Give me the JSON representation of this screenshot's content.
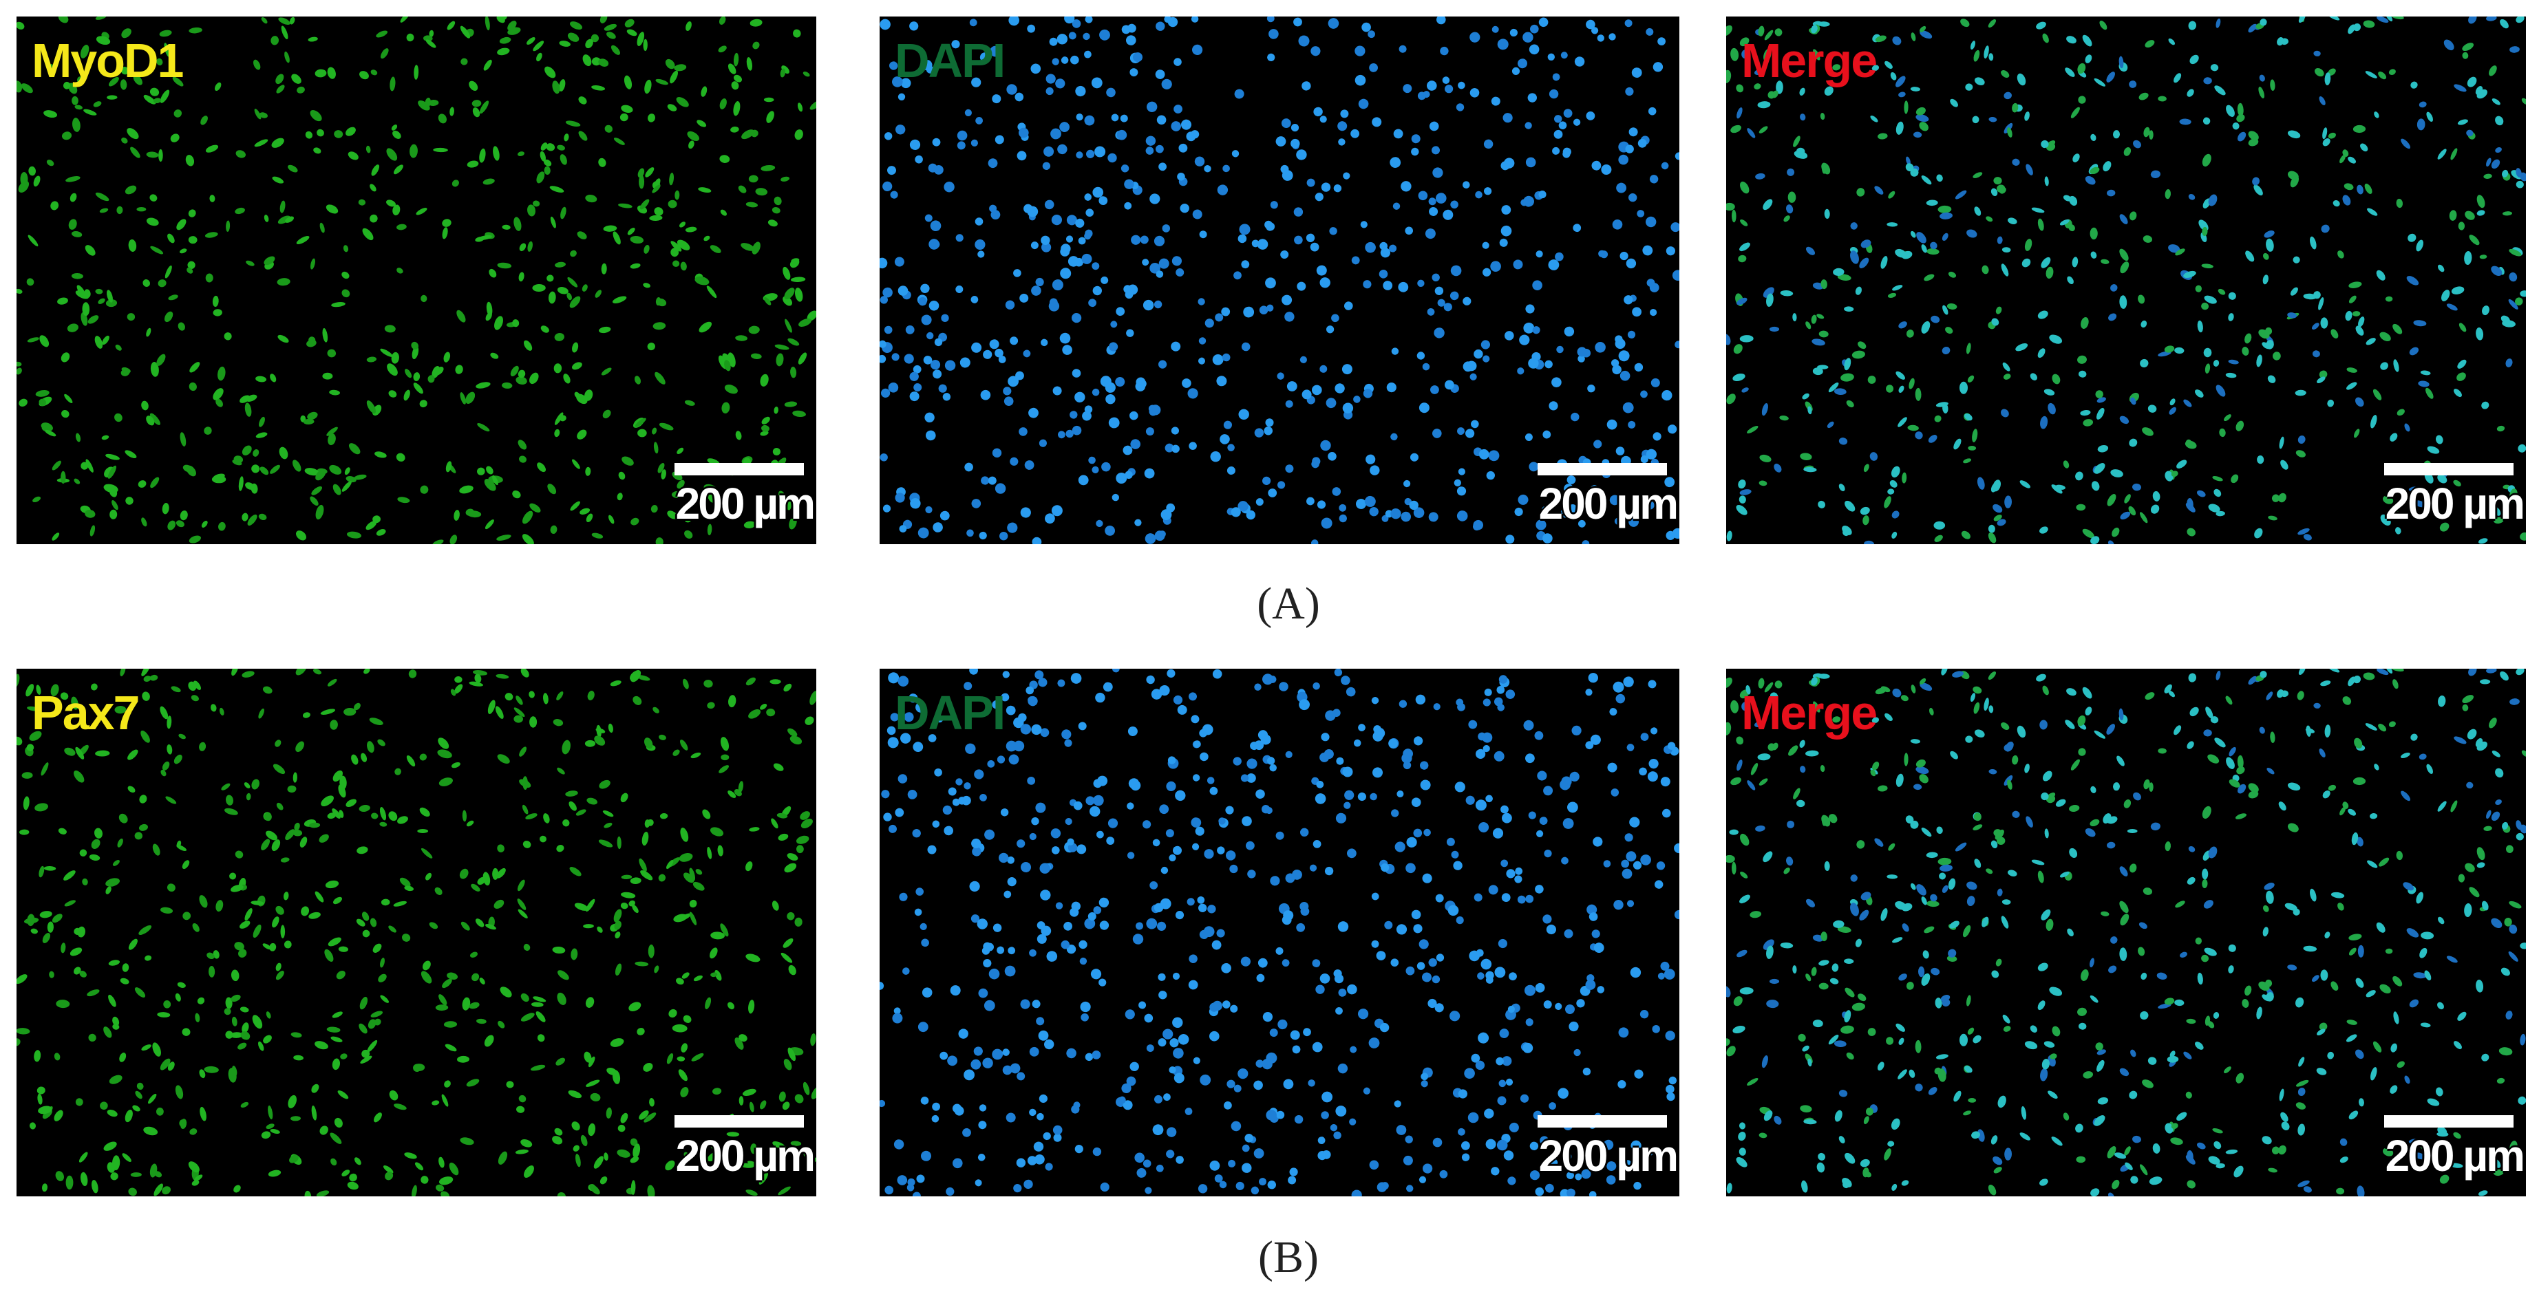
{
  "rows": [
    {
      "caption": "(A)",
      "panels": [
        {
          "label": "MyoD1",
          "scale_bar": "200 µm"
        },
        {
          "label": "DAPI",
          "scale_bar": "200 µm"
        },
        {
          "label": "Merge",
          "scale_bar": "200 µm"
        }
      ]
    },
    {
      "caption": "(B)",
      "panels": [
        {
          "label": "Pax7",
          "scale_bar": "200 µm"
        },
        {
          "label": "DAPI",
          "scale_bar": "200 µm"
        },
        {
          "label": "Merge",
          "scale_bar": "200 µm"
        }
      ]
    }
  ]
}
